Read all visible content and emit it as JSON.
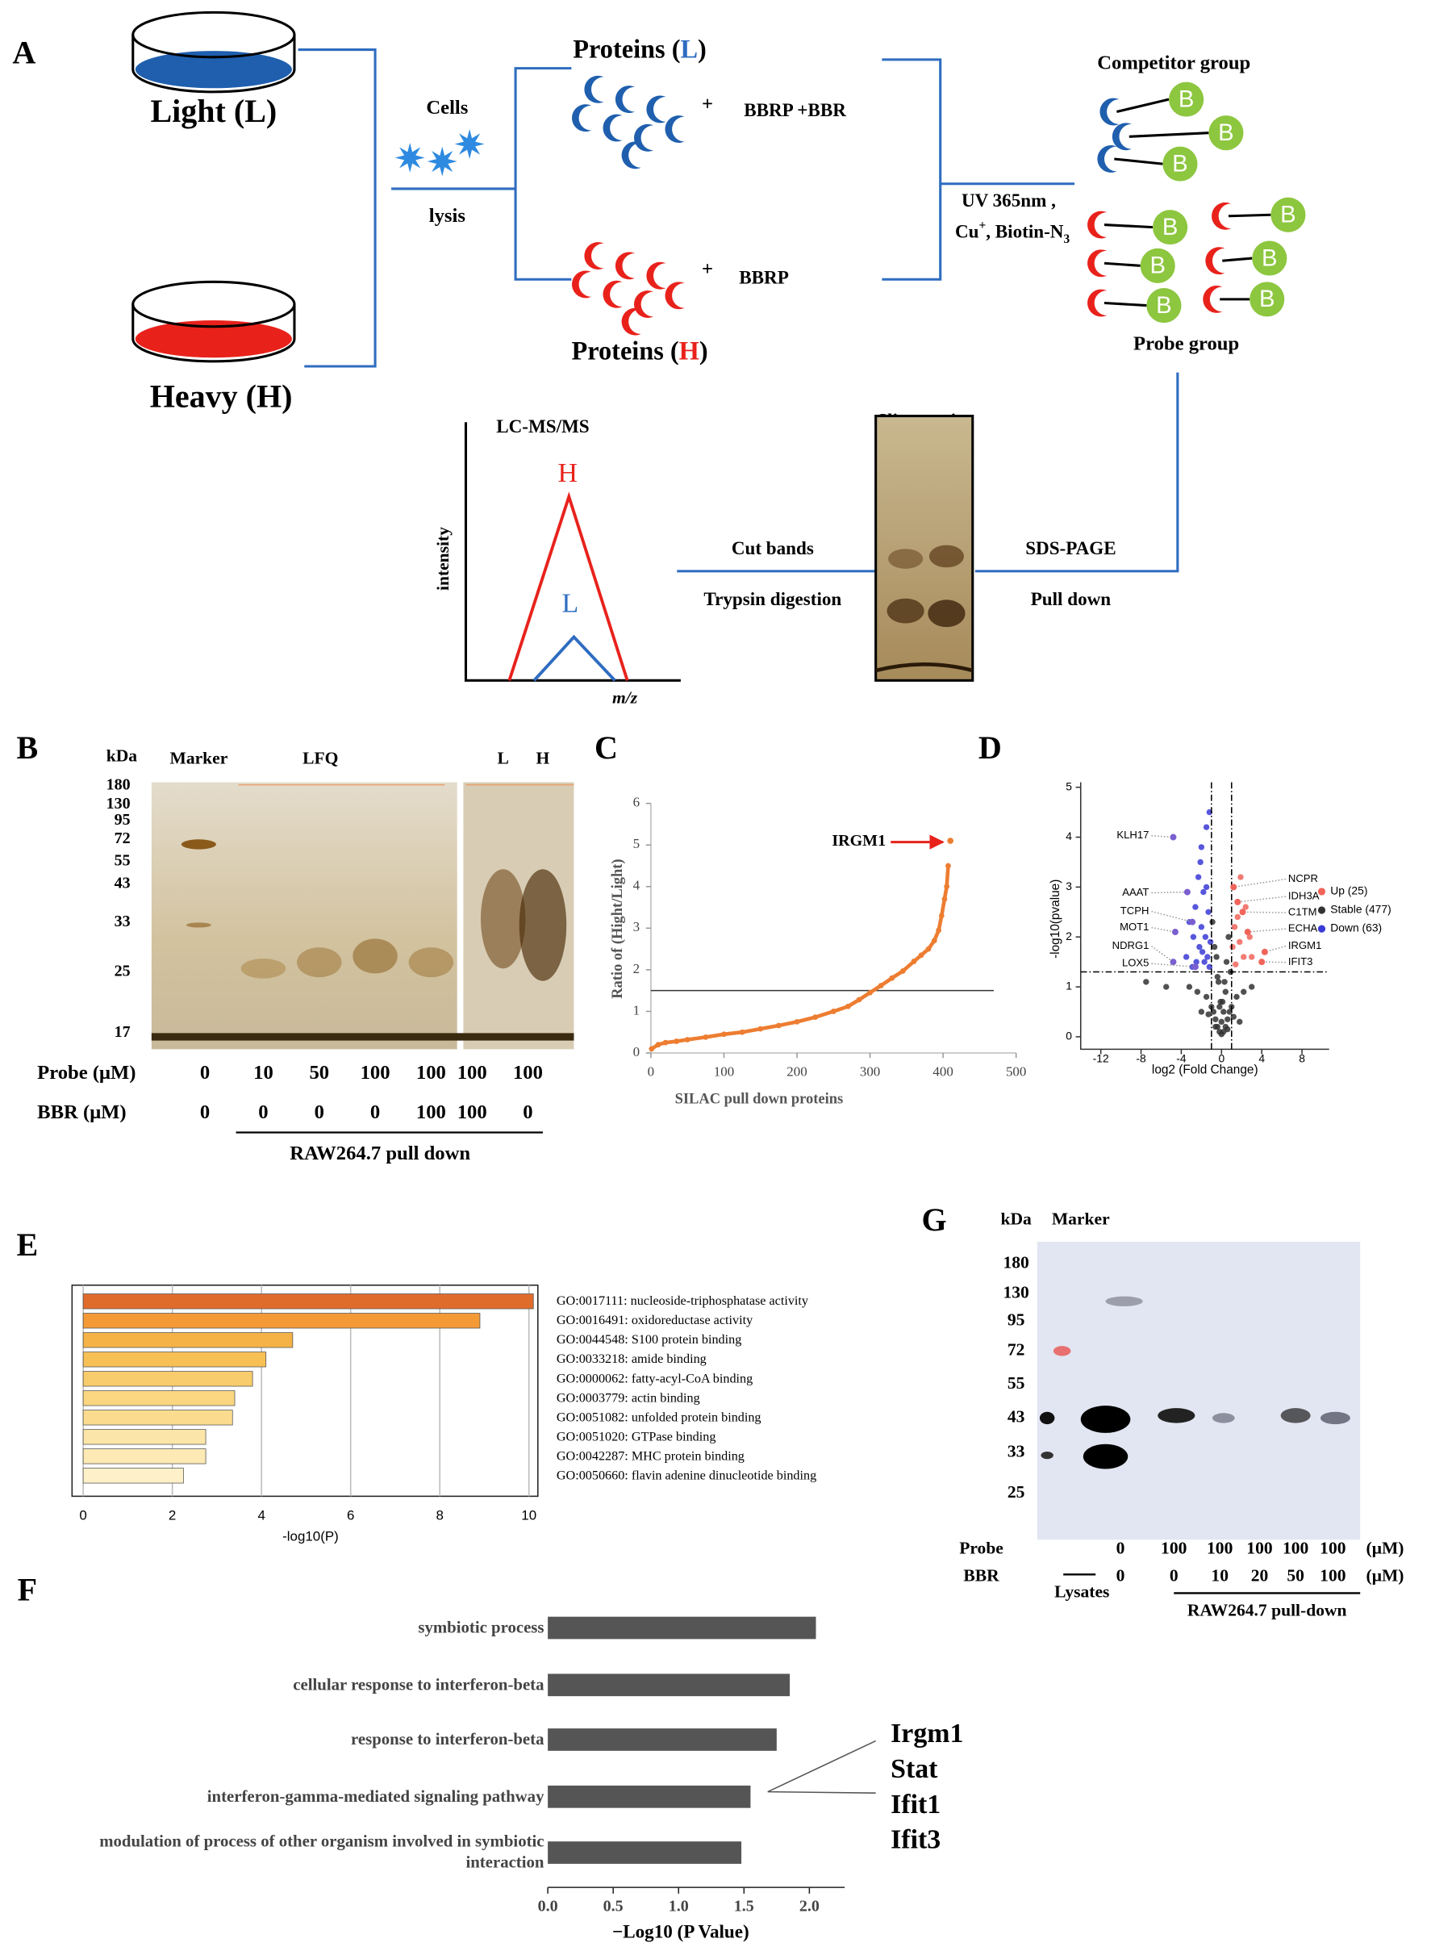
{
  "panel_a": {
    "label": "A",
    "light": "Light (L)",
    "heavy": "Heavy (H)",
    "cells": "Cells",
    "lysis": "lysis",
    "proteins_l": {
      "text": "Proteins (",
      "letter": "L",
      "close": ")"
    },
    "proteins_h": {
      "text": "Proteins (",
      "letter": "H",
      "close": ")"
    },
    "plus": "+",
    "bbrp_bbr": "BBRP +BBR",
    "bbrp": "BBRP",
    "uv": "UV 365nm ,",
    "cu": "Cu",
    "cu_charge": "+",
    "biotin": ", Biotin-N",
    "biotin_sub": "3",
    "competitor": "Competitor group",
    "probe_group": "Probe group",
    "biotin_tag": "B",
    "lcms": "LC-MS/MS",
    "intensity": "intensity",
    "mz": "m/z",
    "peak_h": "H",
    "peak_l": "L",
    "stain": "Sliver stain",
    "cut_bands": "Cut bands",
    "trypsin": "Trypsin digestion",
    "sds_page": "SDS-PAGE",
    "pull_down": "Pull down"
  },
  "panel_b": {
    "label": "B",
    "kda": "kDa",
    "mw": [
      180,
      130,
      95,
      72,
      55,
      43,
      33,
      25,
      17
    ],
    "lanes": [
      "Marker",
      "LFQ",
      "L",
      "H"
    ],
    "probe_label": "Probe (μM)",
    "probe": [
      0,
      10,
      50,
      100,
      100,
      100,
      100
    ],
    "bbr_label": "BBR (μM)",
    "bbr": [
      0,
      0,
      0,
      0,
      100,
      100,
      0
    ],
    "footer": "RAW264.7 pull down"
  },
  "panel_g": {
    "label": "G",
    "kda": "kDa",
    "marker": "Marker",
    "mw": [
      180,
      130,
      95,
      72,
      55,
      43,
      33,
      25
    ],
    "probe_label": "Probe",
    "probe": [
      0,
      100,
      100,
      100,
      100,
      100
    ],
    "unit": "(μM)",
    "bbr_label": "BBR",
    "bbr": [
      0,
      0,
      10,
      20,
      50,
      100
    ],
    "lysates": "Lysates",
    "footer": "RAW264.7 pull-down"
  },
  "chart_data": [
    {
      "type": "scatter",
      "panel": "C",
      "xlabel": "SILAC pull down proteins",
      "ylabel": "Ratio of (Hight/Light)",
      "x": [
        1,
        10,
        20,
        35,
        50,
        75,
        100,
        125,
        150,
        175,
        200,
        225,
        250,
        270,
        285,
        300,
        315,
        330,
        345,
        360,
        370,
        380,
        388,
        394,
        398,
        402,
        405,
        407
      ],
      "y": [
        0.1,
        0.2,
        0.25,
        0.28,
        0.32,
        0.38,
        0.45,
        0.5,
        0.58,
        0.66,
        0.75,
        0.86,
        1.0,
        1.12,
        1.28,
        1.45,
        1.62,
        1.8,
        1.97,
        2.2,
        2.35,
        2.5,
        2.7,
        2.95,
        3.3,
        3.7,
        4.0,
        4.5
      ],
      "color": "#ed7d31",
      "xlim": [
        0,
        500
      ],
      "xticks": [
        0,
        100,
        200,
        300,
        400,
        500
      ],
      "ylim": [
        0,
        6
      ],
      "yticks": [
        0,
        1,
        2,
        3,
        4,
        5,
        6
      ],
      "threshold": 1.5,
      "annotation": {
        "text": "IRGM1",
        "x": 410,
        "y": 5.1
      }
    },
    {
      "type": "volcano",
      "panel": "D",
      "xlabel": "log2 (Fold Change)",
      "ylabel": "-log10(pvalue)",
      "xlim": [
        -14,
        10.7
      ],
      "xticks": [
        -12,
        -8,
        -4,
        0,
        4,
        8
      ],
      "ylim": [
        -0.25,
        5.1
      ],
      "yticks": [
        0,
        1,
        2,
        3,
        4,
        5
      ],
      "xthresholds": [
        -1,
        1
      ],
      "ythreshold": 1.3,
      "series": [
        {
          "name": "Up (25)",
          "color": "#f0645a",
          "x": [
            1.3,
            1.8,
            2.2,
            1.1,
            1.6,
            2.8,
            3.0,
            1.4,
            2.4,
            1.9
          ],
          "y": [
            2.2,
            1.9,
            1.6,
            1.8,
            2.4,
            2.0,
            1.6,
            1.45,
            2.6,
            3.2
          ]
        },
        {
          "name": "Stable (477)",
          "color": "#333333",
          "x": [
            0,
            0.2,
            -0.2,
            0.4,
            -0.4,
            0.6,
            -0.6,
            0.8,
            -0.8,
            1.0,
            -1.0,
            1.5,
            -1.5,
            2.2,
            -2.4,
            3.0,
            -3.2,
            0.1,
            -0.1,
            0.3,
            -0.3,
            0.5,
            -0.5,
            0.7,
            -0.7,
            0.9,
            -0.9,
            0.0,
            0.2,
            -0.2,
            -5.5,
            -7.5,
            0.4,
            -0.4,
            1.2,
            -1.3,
            1.8,
            -2.0,
            0.6,
            -0.6
          ],
          "y": [
            0.05,
            0.1,
            0.1,
            0.2,
            0.2,
            0.35,
            0.35,
            0.5,
            0.5,
            0.6,
            0.6,
            0.8,
            0.8,
            0.9,
            0.9,
            1.0,
            1.0,
            0.7,
            0.7,
            1.1,
            1.1,
            1.5,
            1.6,
            2.0,
            1.8,
            1.3,
            2.3,
            0.3,
            0.5,
            0.6,
            1.0,
            1.1,
            0.9,
            1.2,
            0.4,
            0.45,
            0.3,
            0.5,
            0.15,
            0.2
          ]
        },
        {
          "name": "Down (63)",
          "color": "#3a3ad6",
          "x": [
            -1.2,
            -1.5,
            -2.0,
            -2.3,
            -1.8,
            -2.6,
            -1.3,
            -3.2,
            -2.0,
            -1.6,
            -2.8,
            -1.1,
            -2.2,
            -1.9,
            -3.5,
            -1.4,
            -2.5,
            -1.7,
            -1.2,
            -2.9,
            -2.1,
            -1.5
          ],
          "y": [
            4.5,
            4.2,
            3.8,
            3.2,
            2.9,
            2.6,
            2.5,
            2.3,
            2.2,
            2.0,
            2.0,
            1.9,
            1.8,
            1.7,
            1.6,
            1.6,
            1.5,
            1.5,
            1.4,
            1.4,
            3.5,
            3.0
          ]
        }
      ],
      "labels": [
        {
          "text": "KLH17",
          "x": -4.8,
          "y": 4.0
        },
        {
          "text": "AAAT",
          "x": -3.4,
          "y": 2.9
        },
        {
          "text": "TCPH",
          "x": -2.9,
          "y": 2.3
        },
        {
          "text": "MOT1",
          "x": -4.6,
          "y": 2.1
        },
        {
          "text": "NDRG1",
          "x": -4.8,
          "y": 1.5
        },
        {
          "text": "LOX5",
          "x": -2.6,
          "y": 1.4
        },
        {
          "text": "NCPR",
          "x": 1.2,
          "y": 3.0
        },
        {
          "text": "IDH3A",
          "x": 1.6,
          "y": 2.7
        },
        {
          "text": "C1TM",
          "x": 2.1,
          "y": 2.5
        },
        {
          "text": "ECHA",
          "x": 2.6,
          "y": 2.1
        },
        {
          "text": "IRGM1",
          "x": 4.3,
          "y": 1.7
        },
        {
          "text": "IFIT3",
          "x": 4.0,
          "y": 1.5
        }
      ]
    },
    {
      "type": "barh",
      "panel": "E",
      "xlabel": "-log10(P)",
      "categories": [
        "GO:0017111: nucleoside-triphosphatase activity",
        "GO:0016491: oxidoreductase activity",
        "GO:0044548: S100 protein binding",
        "GO:0033218: amide binding",
        "GO:0000062: fatty-acyl-CoA binding",
        "GO:0003779: actin binding",
        "GO:0051082: unfolded protein binding",
        "GO:0051020: GTPase binding",
        "GO:0042287: MHC protein binding",
        "GO:0050660: flavin adenine dinucleotide binding"
      ],
      "values": [
        10.1,
        8.9,
        4.7,
        4.1,
        3.8,
        3.4,
        3.35,
        2.75,
        2.75,
        2.25
      ],
      "colors": [
        "#e06c2c",
        "#f39a36",
        "#f5b347",
        "#f7c055",
        "#f8cc6c",
        "#fad680",
        "#fbdc8f",
        "#fce5a8",
        "#fde9b4",
        "#fef0c8"
      ],
      "xlim": [
        -0.25,
        10.2
      ],
      "xticks": [
        0,
        2,
        4,
        6,
        8,
        10
      ],
      "grid": true
    },
    {
      "type": "barh",
      "panel": "F",
      "xlabel": "−Log10 (P Value)",
      "categories": [
        "symbiotic process",
        "cellular response to interferon-beta",
        "response to interferon-beta",
        "interferon-gamma-mediated signaling pathway",
        "modulation of process of other organism involved in symbiotic interaction"
      ],
      "values": [
        2.05,
        1.85,
        1.75,
        1.55,
        1.48
      ],
      "color": "#555555",
      "xlim": [
        0,
        2.27
      ],
      "xticks": [
        {
          "value": 0,
          "label": "0.0"
        },
        {
          "value": 0.5,
          "label": "0.5"
        },
        {
          "value": 1,
          "label": "1.0"
        },
        {
          "value": 1.5,
          "label": "1.5"
        },
        {
          "value": 2,
          "label": "2.0"
        }
      ],
      "genes": [
        "Irgm1",
        "Stat",
        "Ifit1",
        "Ifit3"
      ]
    }
  ]
}
